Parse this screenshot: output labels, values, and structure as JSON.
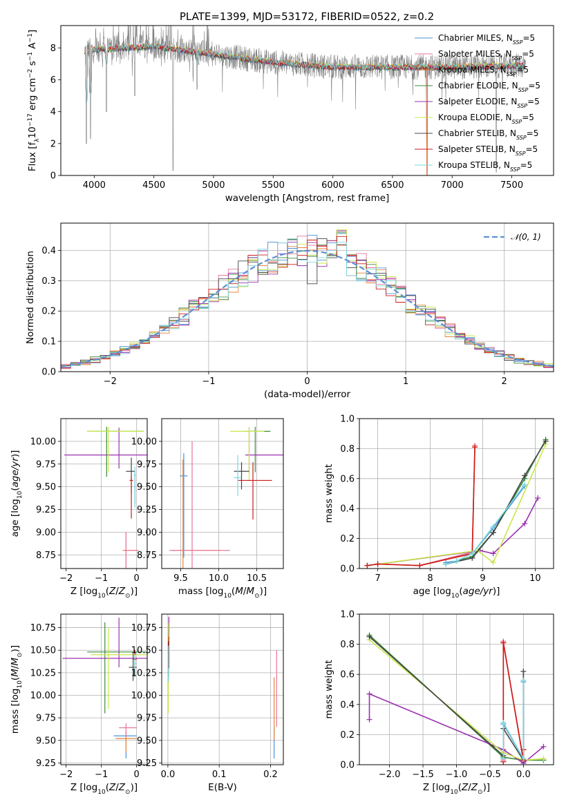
{
  "figure_title": "PLATE=1399, MJD=53172, FIBERID=0522, z=0.2",
  "colors": {
    "Chabrier MILES": "#4a90d9",
    "Salpeter MILES": "#e8749a",
    "Kroupa MILES": "#e8823a",
    "Chabrier ELODIE": "#3a8a3a",
    "Salpeter ELODIE": "#9b30b0",
    "Kroupa ELODIE": "#c8e84a",
    "Chabrier STELIB": "#444444",
    "Salpeter STELIB": "#cc1a1a",
    "Kroupa STELIB": "#7ad8e0",
    "data": "#808080",
    "gaussian": "#5b8fd6"
  },
  "chart_data": [
    {
      "id": "spectrum",
      "type": "line",
      "xlabel": "wavelength [Angstrom, rest frame]",
      "ylabel": "Flux [f_λ10^-17 erg cm^-2 s^-1 A^-1]",
      "xlim": [
        3720,
        7850
      ],
      "ylim": [
        0,
        9.4
      ],
      "xticks": [
        4000,
        4500,
        5000,
        5500,
        6000,
        6500,
        7000,
        7500
      ],
      "yticks": [
        0,
        2,
        4,
        6,
        8
      ],
      "x_range_data": [
        3920,
        7620
      ],
      "continuum": {
        "x": [
          3920,
          4000,
          4500,
          5000,
          5500,
          6000,
          6500,
          7000,
          7600
        ],
        "y": [
          7.8,
          7.9,
          8.1,
          7.6,
          7.1,
          6.8,
          6.8,
          6.8,
          6.9
        ]
      },
      "absorption_features": [
        {
          "x": 3934,
          "y": 2.0
        },
        {
          "x": 3969,
          "y": 2.3
        },
        {
          "x": 4102,
          "y": 4.0
        },
        {
          "x": 4340,
          "y": 5.0
        },
        {
          "x": 4660,
          "y": 0.3
        },
        {
          "x": 4862,
          "y": 5.4
        },
        {
          "x": 6790,
          "y": 0.0
        },
        {
          "x": 7370,
          "y": 0.2
        }
      ],
      "legend_position": "upper right",
      "legend": [
        {
          "label": "Chabrier MILES",
          "model": "Chabrier MILES"
        },
        {
          "label": "Salpeter MILES",
          "model": "Salpeter MILES"
        },
        {
          "label": "Kroupa MILES",
          "model": "Kroupa MILES"
        },
        {
          "label": "Chabrier ELODIE",
          "model": "Chabrier ELODIE"
        },
        {
          "label": "Salpeter ELODIE",
          "model": "Salpeter ELODIE"
        },
        {
          "label": "Kroupa ELODIE",
          "model": "Kroupa ELODIE"
        },
        {
          "label": "Chabrier STELIB",
          "model": "Chabrier STELIB"
        },
        {
          "label": "Salpeter STELIB",
          "model": "Salpeter STELIB"
        },
        {
          "label": "Kroupa STELIB",
          "model": "Kroupa STELIB"
        }
      ],
      "legend_suffix": ", N_SSP=5"
    },
    {
      "id": "residuals",
      "type": "histogram",
      "xlabel": "(data-model)/error",
      "ylabel": "Normed distribution",
      "xlim": [
        -2.5,
        2.5
      ],
      "ylim": [
        0,
        0.49
      ],
      "xticks": [
        -2,
        -1,
        0,
        1,
        2
      ],
      "yticks": [
        0.0,
        0.1,
        0.2,
        0.3,
        0.4
      ],
      "bin_width": 0.1,
      "grid": true,
      "gaussian_label": "𝒩(0, 1)",
      "legend_position": "upper right"
    },
    {
      "id": "age_vs_Z",
      "type": "errorbar",
      "xlabel": "Z [log10(Z/Z⊙)]",
      "ylabel": "age [log10(age/yr)]",
      "xlim": [
        -2.15,
        0.3
      ],
      "ylim": [
        8.6,
        10.25
      ],
      "xticks": [
        -2,
        -1,
        0
      ],
      "yticks": [
        8.75,
        9.0,
        9.25,
        9.5,
        9.75,
        10.0
      ],
      "points": [
        {
          "model": "Chabrier MILES",
          "x": -0.05,
          "y": 9.63,
          "xerr": [
            0.02,
            0.02
          ],
          "yerr": [
            0.32,
            0.05
          ]
        },
        {
          "model": "Kroupa MILES",
          "x": -0.3,
          "y": 8.8,
          "xerr": [
            0.1,
            0.35
          ],
          "yerr": [
            0.2,
            0.2
          ]
        },
        {
          "model": "Salpeter MILES",
          "x": -0.3,
          "y": 8.8,
          "xerr": [
            0.05,
            0.35
          ],
          "yerr": [
            0.2,
            0.2
          ]
        },
        {
          "model": "Chabrier ELODIE",
          "x": -0.85,
          "y": 10.11,
          "xerr": [
            0.55,
            1.05
          ],
          "yerr": [
            0.5,
            0.05
          ]
        },
        {
          "model": "Salpeter ELODIE",
          "x": -0.5,
          "y": 9.85,
          "xerr": [
            1.55,
            0.8
          ],
          "yerr": [
            0.15,
            0.3
          ]
        },
        {
          "model": "Kroupa ELODIE",
          "x": -0.8,
          "y": 10.11,
          "xerr": [
            0.6,
            1.0
          ],
          "yerr": [
            0.45,
            0.05
          ]
        },
        {
          "model": "Chabrier STELIB",
          "x": -0.15,
          "y": 9.67,
          "xerr": [
            0.15,
            0.1
          ],
          "yerr": [
            0.25,
            0.15
          ]
        },
        {
          "model": "Salpeter STELIB",
          "x": -0.15,
          "y": 9.57,
          "xerr": [
            0.05,
            0.05
          ],
          "yerr": [
            0.42,
            0.05
          ]
        },
        {
          "model": "Kroupa STELIB",
          "x": -0.05,
          "y": 9.62,
          "xerr": [
            0.02,
            0.02
          ],
          "yerr": [
            0.35,
            0.1
          ]
        }
      ]
    },
    {
      "id": "age_vs_mass",
      "type": "errorbar",
      "xlabel": "mass [log10(M/M⊙)]",
      "ylabel": "",
      "xlim": [
        9.25,
        10.85
      ],
      "ylim": [
        8.6,
        10.25
      ],
      "xticks": [
        9.5,
        10.0,
        10.5
      ],
      "yticks": [
        8.75,
        9.0,
        9.25,
        9.5,
        9.75,
        10.0
      ],
      "points": [
        {
          "model": "Chabrier MILES",
          "x": 9.54,
          "y": 9.62,
          "xerr": [
            0.05,
            0.05
          ],
          "yerr": [
            0.9,
            0.25
          ]
        },
        {
          "model": "Kroupa MILES",
          "x": 9.53,
          "y": 8.8,
          "xerr": [
            0.15,
            0.5
          ],
          "yerr": [
            0.2,
            1.0
          ]
        },
        {
          "model": "Salpeter MILES",
          "x": 9.65,
          "y": 8.8,
          "xerr": [
            0.3,
            0.5
          ],
          "yerr": [
            0.2,
            1.2
          ]
        },
        {
          "model": "Chabrier ELODIE",
          "x": 10.48,
          "y": 10.11,
          "xerr": [
            0.15,
            0.2
          ],
          "yerr": [
            0.45,
            0.05
          ]
        },
        {
          "model": "Salpeter ELODIE",
          "x": 10.4,
          "y": 9.85,
          "xerr": [
            0.05,
            0.45
          ],
          "yerr": [
            0.2,
            0.3
          ]
        },
        {
          "model": "Kroupa ELODIE",
          "x": 10.4,
          "y": 10.11,
          "xerr": [
            0.25,
            0.2
          ],
          "yerr": [
            0.55,
            0.05
          ]
        },
        {
          "model": "Chabrier STELIB",
          "x": 10.3,
          "y": 9.67,
          "xerr": [
            0.1,
            0.1
          ],
          "yerr": [
            0.2,
            0.1
          ]
        },
        {
          "model": "Salpeter STELIB",
          "x": 10.45,
          "y": 9.57,
          "xerr": [
            0.2,
            0.25
          ],
          "yerr": [
            0.43,
            0.2
          ]
        },
        {
          "model": "Kroupa STELIB",
          "x": 10.25,
          "y": 9.6,
          "xerr": [
            0.05,
            0.05
          ],
          "yerr": [
            0.2,
            0.25
          ]
        }
      ]
    },
    {
      "id": "massweight_vs_age",
      "type": "line",
      "xlabel": "age [log10(age/yr)]",
      "ylabel": "mass weight",
      "xlim": [
        6.65,
        10.35
      ],
      "ylim": [
        0,
        1.0
      ],
      "xticks": [
        7,
        8,
        9,
        10
      ],
      "yticks": [
        0.0,
        0.2,
        0.4,
        0.6,
        0.8,
        1.0
      ],
      "series": [
        {
          "model": "Chabrier MILES",
          "x": [
            8.3,
            8.5,
            8.8,
            9.2,
            9.8
          ],
          "y": [
            0.04,
            0.05,
            0.1,
            0.27,
            0.55
          ]
        },
        {
          "model": "Salpeter MILES",
          "x": [
            6.8,
            7.0,
            7.8,
            8.8,
            8.85
          ],
          "y": [
            0.02,
            0.03,
            0.02,
            0.11,
            0.82
          ]
        },
        {
          "model": "Kroupa MILES",
          "x": [
            6.8,
            7.0,
            7.8,
            8.8,
            8.85
          ],
          "y": [
            0.02,
            0.03,
            0.02,
            0.1,
            0.81
          ]
        },
        {
          "model": "Chabrier ELODIE",
          "x": [
            8.3,
            8.8,
            9.2,
            9.8,
            10.2
          ],
          "y": [
            0.03,
            0.08,
            0.24,
            0.6,
            0.86
          ]
        },
        {
          "model": "Salpeter ELODIE",
          "x": [
            6.8,
            8.95,
            9.2,
            9.8,
            10.05
          ],
          "y": [
            0.02,
            0.12,
            0.1,
            0.3,
            0.47
          ]
        },
        {
          "model": "Kroupa ELODIE",
          "x": [
            6.8,
            8.9,
            9.2,
            10.2
          ],
          "y": [
            0.02,
            0.12,
            0.04,
            0.83
          ]
        },
        {
          "model": "Chabrier STELIB",
          "x": [
            8.3,
            8.8,
            9.2,
            9.8,
            10.2
          ],
          "y": [
            0.03,
            0.07,
            0.24,
            0.62,
            0.85
          ]
        },
        {
          "model": "Salpeter STELIB",
          "x": [
            6.8,
            7.0,
            7.8,
            8.8,
            8.85
          ],
          "y": [
            0.02,
            0.03,
            0.02,
            0.1,
            0.81
          ]
        },
        {
          "model": "Kroupa STELIB",
          "x": [
            8.3,
            8.5,
            8.8,
            9.2,
            9.8
          ],
          "y": [
            0.03,
            0.05,
            0.1,
            0.28,
            0.56
          ]
        }
      ]
    },
    {
      "id": "mass_vs_Z",
      "type": "errorbar",
      "xlabel": "Z [log10(Z/Z⊙)]",
      "ylabel": "mass [log10(M/M⊙)]",
      "xlim": [
        -2.15,
        0.3
      ],
      "ylim": [
        9.23,
        10.9
      ],
      "xticks": [
        -2,
        -1,
        0
      ],
      "yticks": [
        9.25,
        9.5,
        9.75,
        10.0,
        10.25,
        10.5,
        10.75
      ],
      "points": [
        {
          "model": "Chabrier MILES",
          "x": -0.3,
          "y": 9.55,
          "xerr": [
            0.35,
            0.3
          ],
          "yerr": [
            0.25,
            0.05
          ]
        },
        {
          "model": "Kroupa MILES",
          "x": -0.3,
          "y": 9.52,
          "xerr": [
            0.3,
            0.3
          ],
          "yerr": [
            0.15,
            0.05
          ]
        },
        {
          "model": "Salpeter MILES",
          "x": -0.3,
          "y": 9.64,
          "xerr": [
            0.2,
            0.3
          ],
          "yerr": [
            0.1,
            0.05
          ]
        },
        {
          "model": "Chabrier ELODIE",
          "x": -0.9,
          "y": 10.48,
          "xerr": [
            0.5,
            1.2
          ],
          "yerr": [
            0.68,
            0.33
          ]
        },
        {
          "model": "Salpeter ELODIE",
          "x": -0.5,
          "y": 10.41,
          "xerr": [
            1.6,
            0.85
          ],
          "yerr": [
            0.1,
            0.45
          ]
        },
        {
          "model": "Kroupa ELODIE",
          "x": -0.8,
          "y": 10.45,
          "xerr": [
            0.5,
            1.1
          ],
          "yerr": [
            0.6,
            0.3
          ]
        },
        {
          "model": "Chabrier STELIB",
          "x": -0.1,
          "y": 10.31,
          "xerr": [
            0.12,
            0.1
          ],
          "yerr": [
            0.15,
            0.15
          ]
        },
        {
          "model": "Salpeter STELIB",
          "x": -0.05,
          "y": 10.4,
          "xerr": [
            0.05,
            0.05
          ],
          "yerr": [
            0.2,
            0.1
          ]
        },
        {
          "model": "Kroupa STELIB",
          "x": -0.05,
          "y": 10.35,
          "xerr": [
            0.05,
            0.05
          ],
          "yerr": [
            0.15,
            0.1
          ]
        }
      ]
    },
    {
      "id": "mass_vs_EBV",
      "type": "errorbar",
      "xlabel": "E(B-V)",
      "ylabel": "",
      "xlim": [
        -0.012,
        0.225
      ],
      "ylim": [
        9.23,
        10.9
      ],
      "xticks": [
        0.0,
        0.1,
        0.2
      ],
      "yticks": [
        9.25,
        9.5,
        9.75,
        10.0,
        10.25,
        10.5,
        10.75
      ],
      "points": [
        {
          "model": "Chabrier MILES",
          "x": 0.207,
          "y": 9.4,
          "xerr": [
            0,
            0
          ],
          "yerr": [
            0.1,
            0.25
          ]
        },
        {
          "model": "Kroupa MILES",
          "x": 0.207,
          "y": 9.55,
          "xerr": [
            0,
            0
          ],
          "yerr": [
            0.05,
            0.65
          ]
        },
        {
          "model": "Salpeter MILES",
          "x": 0.212,
          "y": 10.0,
          "xerr": [
            0,
            0
          ],
          "yerr": [
            0.35,
            0.5
          ]
        },
        {
          "model": "Chabrier ELODIE",
          "x": 0.001,
          "y": 10.5,
          "xerr": [
            0,
            0
          ],
          "yerr": [
            0.35,
            0.2
          ]
        },
        {
          "model": "Salpeter ELODIE",
          "x": 0.002,
          "y": 10.6,
          "xerr": [
            0,
            0
          ],
          "yerr": [
            0.2,
            0.27
          ]
        },
        {
          "model": "Kroupa ELODIE",
          "x": 0.001,
          "y": 10.3,
          "xerr": [
            0,
            0
          ],
          "yerr": [
            0.5,
            0.5
          ]
        },
        {
          "model": "Chabrier STELIB",
          "x": 0.001,
          "y": 10.4,
          "xerr": [
            0,
            0
          ],
          "yerr": [
            0.2,
            0.2
          ]
        },
        {
          "model": "Salpeter STELIB",
          "x": 0.002,
          "y": 10.45,
          "xerr": [
            0,
            0
          ],
          "yerr": [
            0.15,
            0.2
          ]
        },
        {
          "model": "Kroupa STELIB",
          "x": 0.001,
          "y": 10.35,
          "xerr": [
            0,
            0
          ],
          "yerr": [
            0.2,
            0.2
          ]
        }
      ]
    },
    {
      "id": "massweight_vs_Z",
      "type": "line",
      "xlabel": "Z [log10(Z/Z⊙)]",
      "ylabel": "mass weight",
      "xlim": [
        -2.45,
        0.45
      ],
      "ylim": [
        0,
        1.0
      ],
      "xticks": [
        -2.0,
        -1.5,
        -1.0,
        -0.5,
        0.0
      ],
      "yticks": [
        0.0,
        0.2,
        0.4,
        0.6,
        0.8,
        1.0
      ],
      "series": [
        {
          "model": "Chabrier MILES",
          "x": [
            -0.3,
            -0.3,
            0.0,
            0.0
          ],
          "y": [
            0.04,
            0.27,
            0.04,
            0.55
          ]
        },
        {
          "model": "Salpeter MILES",
          "x": [
            -0.3,
            -0.3,
            0.0,
            0.0
          ],
          "y": [
            0.03,
            0.82,
            0.02,
            0.1
          ]
        },
        {
          "model": "Kroupa MILES",
          "x": [
            -0.3,
            -0.3,
            0.0,
            0.0
          ],
          "y": [
            0.02,
            0.81,
            0.03,
            0.1
          ]
        },
        {
          "model": "Chabrier ELODIE",
          "x": [
            -2.3,
            -0.3,
            0.0,
            0.3
          ],
          "y": [
            0.86,
            0.05,
            0.03,
            0.03
          ]
        },
        {
          "model": "Salpeter ELODIE",
          "x": [
            -2.3,
            -2.3,
            -0.3,
            0.0,
            0.3
          ],
          "y": [
            0.3,
            0.47,
            0.1,
            0.01,
            0.12
          ]
        },
        {
          "model": "Kroupa ELODIE",
          "x": [
            -2.3,
            -0.3,
            0.0,
            0.3
          ],
          "y": [
            0.83,
            0.08,
            0.03,
            0.04
          ]
        },
        {
          "model": "Chabrier STELIB",
          "x": [
            -2.3,
            -0.3,
            -0.3,
            0.0,
            0.0
          ],
          "y": [
            0.85,
            0.06,
            0.24,
            0.03,
            0.62
          ]
        },
        {
          "model": "Salpeter STELIB",
          "x": [
            -0.3,
            -0.3,
            0.0,
            0.0
          ],
          "y": [
            0.02,
            0.81,
            0.03,
            0.1
          ]
        },
        {
          "model": "Kroupa STELIB",
          "x": [
            -0.3,
            -0.3,
            0.0,
            0.0
          ],
          "y": [
            0.04,
            0.28,
            0.04,
            0.56
          ]
        }
      ]
    }
  ]
}
